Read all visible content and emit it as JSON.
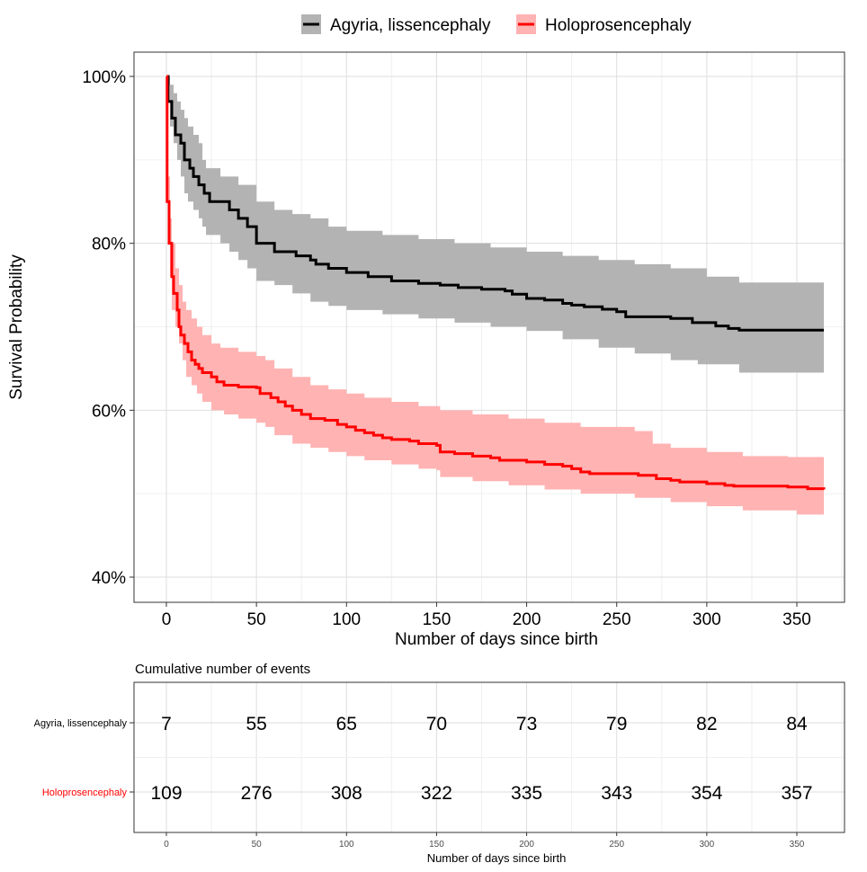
{
  "chart_data": [
    {
      "type": "line",
      "title": "",
      "xlabel": "Number of days since birth",
      "ylabel": "Survival Probability",
      "xlim": [
        -18,
        374
      ],
      "ylim": [
        37,
        103
      ],
      "x_ticks": [
        0,
        50,
        100,
        150,
        200,
        250,
        300,
        350
      ],
      "x_tick_labels": [
        "0",
        "50",
        "100",
        "150",
        "200",
        "250",
        "300",
        "350"
      ],
      "y_ticks": [
        40,
        60,
        80,
        100
      ],
      "y_tick_labels": [
        "40%",
        "60%",
        "80%",
        "100%"
      ],
      "grid": true,
      "legend_position": "top",
      "legend": [
        {
          "label": "Agyria, lissencephaly",
          "color": "#000000",
          "fill": "#b3b3b3"
        },
        {
          "label": "Holoprosencephaly",
          "color": "#ff0000",
          "fill": "#ffb3b3"
        }
      ],
      "series": [
        {
          "name": "Agyria, lissencephaly",
          "color": "#000000",
          "band_color": "#b3b3b3",
          "steps": [
            [
              0,
              100
            ],
            [
              1,
              97
            ],
            [
              3,
              95
            ],
            [
              5,
              93
            ],
            [
              8,
              92
            ],
            [
              10,
              90
            ],
            [
              13,
              89
            ],
            [
              15,
              88
            ],
            [
              18,
              87
            ],
            [
              21,
              86
            ],
            [
              24,
              85
            ],
            [
              30,
              85
            ],
            [
              35,
              84
            ],
            [
              40,
              83
            ],
            [
              45,
              82
            ],
            [
              50,
              80
            ],
            [
              58,
              80
            ],
            [
              60,
              79
            ],
            [
              68,
              79
            ],
            [
              72,
              78.5
            ],
            [
              80,
              78
            ],
            [
              83,
              77.5
            ],
            [
              90,
              77
            ],
            [
              97,
              77
            ],
            [
              100,
              76.5
            ],
            [
              112,
              76
            ],
            [
              122,
              76
            ],
            [
              125,
              75.5
            ],
            [
              138,
              75.5
            ],
            [
              140,
              75.2
            ],
            [
              152,
              75
            ],
            [
              162,
              74.7
            ],
            [
              175,
              74.5
            ],
            [
              188,
              74.3
            ],
            [
              192,
              73.9
            ],
            [
              200,
              73.4
            ],
            [
              210,
              73.2
            ],
            [
              220,
              72.8
            ],
            [
              225,
              72.6
            ],
            [
              232,
              72.4
            ],
            [
              242,
              72.1
            ],
            [
              250,
              71.8
            ],
            [
              255,
              71.2
            ],
            [
              280,
              71
            ],
            [
              292,
              70.5
            ],
            [
              305,
              70.1
            ],
            [
              312,
              69.8
            ],
            [
              318,
              69.6
            ],
            [
              365,
              69.6
            ]
          ],
          "lower": [
            [
              0,
              99
            ],
            [
              2,
              94
            ],
            [
              4,
              92
            ],
            [
              6,
              90
            ],
            [
              8,
              88
            ],
            [
              10,
              86
            ],
            [
              12,
              85
            ],
            [
              15,
              84
            ],
            [
              18,
              83
            ],
            [
              20,
              82
            ],
            [
              22,
              81
            ],
            [
              30,
              80
            ],
            [
              35,
              79
            ],
            [
              40,
              78
            ],
            [
              45,
              77
            ],
            [
              50,
              75.5
            ],
            [
              60,
              75
            ],
            [
              70,
              74
            ],
            [
              80,
              73
            ],
            [
              90,
              72.5
            ],
            [
              100,
              72
            ],
            [
              120,
              71.5
            ],
            [
              140,
              71
            ],
            [
              160,
              70.5
            ],
            [
              180,
              70
            ],
            [
              200,
              69.5
            ],
            [
              220,
              68.5
            ],
            [
              240,
              67.5
            ],
            [
              260,
              66.8
            ],
            [
              280,
              66
            ],
            [
              295,
              65.5
            ],
            [
              318,
              64.5
            ],
            [
              365,
              64.5
            ]
          ],
          "upper": [
            [
              0,
              100
            ],
            [
              2,
              99
            ],
            [
              4,
              98
            ],
            [
              6,
              97
            ],
            [
              8,
              96
            ],
            [
              10,
              95
            ],
            [
              12,
              94
            ],
            [
              15,
              93
            ],
            [
              18,
              92
            ],
            [
              20,
              90
            ],
            [
              22,
              89
            ],
            [
              30,
              88
            ],
            [
              40,
              87
            ],
            [
              50,
              85
            ],
            [
              60,
              84
            ],
            [
              70,
              83.5
            ],
            [
              80,
              83
            ],
            [
              90,
              82
            ],
            [
              100,
              81.5
            ],
            [
              120,
              81
            ],
            [
              140,
              80.5
            ],
            [
              160,
              80
            ],
            [
              180,
              79.5
            ],
            [
              200,
              79
            ],
            [
              220,
              78.5
            ],
            [
              240,
              78
            ],
            [
              260,
              77.5
            ],
            [
              280,
              77
            ],
            [
              300,
              76
            ],
            [
              318,
              75.3
            ],
            [
              365,
              75.3
            ]
          ]
        },
        {
          "name": "Holoprosencephaly",
          "color": "#ff0000",
          "band_color": "#ffb3b3",
          "steps": [
            [
              0,
              100
            ],
            [
              0.4,
              85
            ],
            [
              1.5,
              80
            ],
            [
              3,
              76
            ],
            [
              4,
              74
            ],
            [
              6,
              72
            ],
            [
              7,
              70
            ],
            [
              8,
              69
            ],
            [
              10,
              68
            ],
            [
              12,
              67
            ],
            [
              14,
              66
            ],
            [
              16,
              65.5
            ],
            [
              18,
              65
            ],
            [
              20,
              64.5
            ],
            [
              25,
              64
            ],
            [
              28,
              63.4
            ],
            [
              32,
              63
            ],
            [
              40,
              62.8
            ],
            [
              50,
              62.7
            ],
            [
              52,
              62
            ],
            [
              58,
              61.5
            ],
            [
              62,
              61
            ],
            [
              66,
              60.5
            ],
            [
              70,
              60
            ],
            [
              75,
              59.5
            ],
            [
              80,
              59
            ],
            [
              88,
              58.8
            ],
            [
              95,
              58.3
            ],
            [
              100,
              58
            ],
            [
              105,
              57.6
            ],
            [
              110,
              57.3
            ],
            [
              115,
              57
            ],
            [
              120,
              56.7
            ],
            [
              125,
              56.5
            ],
            [
              135,
              56.3
            ],
            [
              140,
              56
            ],
            [
              150,
              55.8
            ],
            [
              152,
              55
            ],
            [
              160,
              54.8
            ],
            [
              170,
              54.5
            ],
            [
              180,
              54.3
            ],
            [
              185,
              54
            ],
            [
              200,
              53.8
            ],
            [
              210,
              53.5
            ],
            [
              220,
              53.3
            ],
            [
              225,
              53
            ],
            [
              230,
              52.6
            ],
            [
              235,
              52.4
            ],
            [
              260,
              52.4
            ],
            [
              262,
              52.2
            ],
            [
              272,
              51.8
            ],
            [
              280,
              51.6
            ],
            [
              285,
              51.4
            ],
            [
              300,
              51.2
            ],
            [
              310,
              51
            ],
            [
              315,
              50.9
            ],
            [
              345,
              50.8
            ],
            [
              356,
              50.6
            ],
            [
              365,
              50.5
            ]
          ],
          "lower": [
            [
              0,
              96
            ],
            [
              1,
              80
            ],
            [
              2,
              76
            ],
            [
              3,
              72
            ],
            [
              5,
              70
            ],
            [
              7,
              68
            ],
            [
              9,
              66
            ],
            [
              11,
              64
            ],
            [
              14,
              63
            ],
            [
              17,
              62
            ],
            [
              20,
              61
            ],
            [
              25,
              60
            ],
            [
              32,
              59.5
            ],
            [
              40,
              59
            ],
            [
              50,
              58.5
            ],
            [
              55,
              58
            ],
            [
              60,
              57
            ],
            [
              70,
              56
            ],
            [
              80,
              55.5
            ],
            [
              90,
              55
            ],
            [
              100,
              54.5
            ],
            [
              110,
              54
            ],
            [
              125,
              53.5
            ],
            [
              140,
              53
            ],
            [
              150,
              52.8
            ],
            [
              152,
              52
            ],
            [
              170,
              51.5
            ],
            [
              190,
              51
            ],
            [
              210,
              50.5
            ],
            [
              230,
              50
            ],
            [
              260,
              49.5
            ],
            [
              280,
              49
            ],
            [
              300,
              48.5
            ],
            [
              320,
              48
            ],
            [
              350,
              47.5
            ],
            [
              365,
              47
            ]
          ],
          "upper": [
            [
              0,
              100
            ],
            [
              1,
              88
            ],
            [
              2,
              83
            ],
            [
              3,
              80
            ],
            [
              5,
              77
            ],
            [
              7,
              75
            ],
            [
              9,
              73
            ],
            [
              11,
              72
            ],
            [
              14,
              71
            ],
            [
              17,
              70
            ],
            [
              20,
              69
            ],
            [
              25,
              68
            ],
            [
              30,
              67.5
            ],
            [
              40,
              67
            ],
            [
              50,
              66.5
            ],
            [
              55,
              66
            ],
            [
              60,
              65
            ],
            [
              70,
              64
            ],
            [
              80,
              63
            ],
            [
              90,
              62.5
            ],
            [
              100,
              62
            ],
            [
              110,
              61.5
            ],
            [
              125,
              61
            ],
            [
              140,
              60.5
            ],
            [
              152,
              60
            ],
            [
              170,
              59.5
            ],
            [
              190,
              59
            ],
            [
              210,
              58.5
            ],
            [
              230,
              58
            ],
            [
              260,
              57.5
            ],
            [
              270,
              56
            ],
            [
              280,
              55.5
            ],
            [
              300,
              55
            ],
            [
              320,
              54.5
            ],
            [
              345,
              54.4
            ],
            [
              365,
              54.3
            ]
          ]
        }
      ]
    },
    {
      "type": "table",
      "title": "Cumulative number of events",
      "xlabel": "Number of days since birth",
      "x_ticks": [
        0,
        50,
        100,
        150,
        200,
        250,
        300,
        350
      ],
      "x_tick_labels": [
        "0",
        "50",
        "100",
        "150",
        "200",
        "250",
        "300",
        "350"
      ],
      "rows": [
        {
          "label": "Agyria, lissencephaly",
          "color": "#000000",
          "values": [
            "7",
            "55",
            "65",
            "70",
            "73",
            "79",
            "82",
            "84"
          ]
        },
        {
          "label": "Holoprosencephaly",
          "color": "#ff0000",
          "values": [
            "109",
            "276",
            "308",
            "322",
            "335",
            "343",
            "354",
            "357"
          ]
        }
      ]
    }
  ]
}
